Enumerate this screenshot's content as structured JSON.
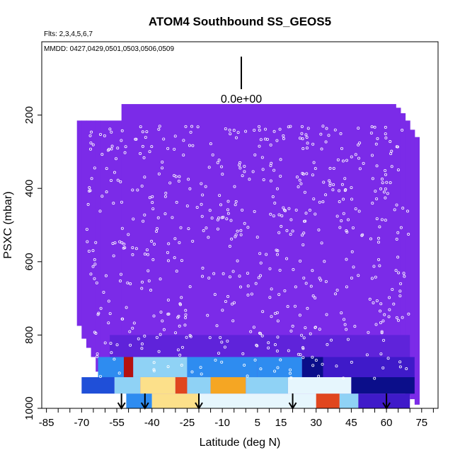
{
  "chart_data": {
    "type": "heatmap",
    "title": "ATOM4 Southbound SS_GEOS5",
    "subtitle_flights": "Flts: 2,3,4,5,6,7",
    "subtitle_dates": "MMDD: 0427,0429,0501,0503,0506,0509",
    "xlabel": "Latitude (deg N)",
    "ylabel": "PSXC (mbar)",
    "xlim": [
      -87,
      82
    ],
    "ylim": [
      1000,
      0
    ],
    "x_ticks": [
      -85,
      -70,
      -55,
      -40,
      -25,
      -10,
      5,
      15,
      30,
      45,
      60,
      75
    ],
    "y_ticks": [
      200,
      400,
      600,
      800,
      1000
    ],
    "scale_label": "0.0e+00",
    "background_value_color": "#7b2be8",
    "colormap": [
      "#7b2be8",
      "#3f1ac9",
      "#0b0e8a",
      "#1f4fd8",
      "#2e8cf0",
      "#8fd2f5",
      "#e6f6fd",
      "#fce08a",
      "#f5a623",
      "#e0461e",
      "#b5120f"
    ],
    "arrow_latitudes": [
      -53,
      -43,
      -20,
      20,
      60
    ],
    "high_value_bands": [
      {
        "p_top": 860,
        "p_bottom": 915,
        "segments": [
          {
            "lat_start": -63,
            "lat_end": -52,
            "level": 4
          },
          {
            "lat_start": -52,
            "lat_end": -48,
            "level": 10
          },
          {
            "lat_start": -48,
            "lat_end": -25,
            "level": 5
          },
          {
            "lat_start": -25,
            "lat_end": 5,
            "level": 4
          },
          {
            "lat_start": 5,
            "lat_end": 24,
            "level": 4
          },
          {
            "lat_start": 24,
            "lat_end": 33,
            "level": 2
          },
          {
            "lat_start": 33,
            "lat_end": 72,
            "level": 1
          }
        ]
      },
      {
        "p_top": 915,
        "p_bottom": 960,
        "segments": [
          {
            "lat_start": -70,
            "lat_end": -56,
            "level": 3
          },
          {
            "lat_start": -56,
            "lat_end": -45,
            "level": 5
          },
          {
            "lat_start": -45,
            "lat_end": -30,
            "level": 7
          },
          {
            "lat_start": -30,
            "lat_end": -25,
            "level": 9
          },
          {
            "lat_start": -25,
            "lat_end": -15,
            "level": 5
          },
          {
            "lat_start": -15,
            "lat_end": 0,
            "level": 8
          },
          {
            "lat_start": 0,
            "lat_end": 18,
            "level": 5
          },
          {
            "lat_start": 18,
            "lat_end": 45,
            "level": 6
          },
          {
            "lat_start": 45,
            "lat_end": 72,
            "level": 2
          }
        ]
      },
      {
        "p_top": 960,
        "p_bottom": 1000,
        "segments": [
          {
            "lat_start": -51,
            "lat_end": -40,
            "level": 4
          },
          {
            "lat_start": -40,
            "lat_end": -20,
            "level": 7
          },
          {
            "lat_start": -20,
            "lat_end": 0,
            "level": 6
          },
          {
            "lat_start": 0,
            "lat_end": 30,
            "level": 6
          },
          {
            "lat_start": 30,
            "lat_end": 40,
            "level": 9
          },
          {
            "lat_start": 40,
            "lat_end": 48,
            "level": 5
          },
          {
            "lat_start": 48,
            "lat_end": 70,
            "level": 1
          }
        ]
      }
    ]
  }
}
